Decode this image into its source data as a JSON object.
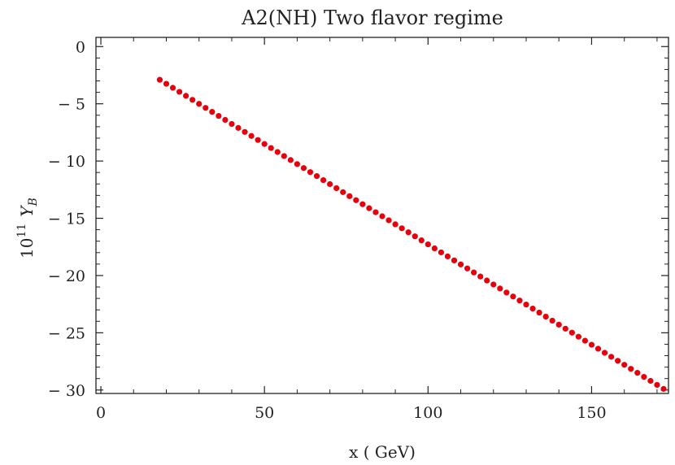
{
  "chart_data": {
    "type": "scatter",
    "title": "A2(NH) Two flavor regime",
    "xlabel": "x ( GeV)",
    "ylabel_base": "10",
    "ylabel_exp": "11",
    "ylabel_var": "Y",
    "ylabel_sub": "B",
    "xlim": [
      -1.5,
      173.5
    ],
    "ylim": [
      -30.3,
      0.8
    ],
    "x_ticks": [
      0,
      50,
      100,
      150
    ],
    "x_tick_labels": [
      "0",
      "50",
      "100",
      "150"
    ],
    "y_ticks": [
      0,
      -5,
      -10,
      -15,
      -20,
      -25,
      -30
    ],
    "y_tick_labels": [
      "0",
      "− 5",
      "− 10",
      "− 15",
      "− 20",
      "− 25",
      "− 30"
    ],
    "grid": false,
    "marker_color": "#e8000b",
    "series": [
      {
        "x_start": 18,
        "x_end": 172,
        "n_points": 78,
        "y_start": -2.9,
        "y_end": -29.9
      }
    ]
  }
}
